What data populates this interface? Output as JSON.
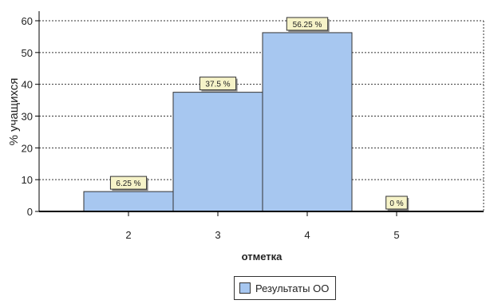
{
  "chart_data": {
    "type": "bar",
    "categories": [
      "2",
      "3",
      "4",
      "5"
    ],
    "series": [
      {
        "name": "Результаты ОО",
        "values": [
          6.25,
          37.5,
          56.25,
          0
        ],
        "color": "#a7c7f0"
      }
    ],
    "data_labels": [
      "6.25 %",
      "37.5 %",
      "56.25 %",
      "0 %"
    ],
    "title": "",
    "xlabel": "отметка",
    "ylabel": "% учащихся",
    "ylim": [
      0,
      60
    ],
    "yticks": [
      0,
      10,
      20,
      30,
      40,
      50,
      60
    ],
    "grid": true,
    "legend_position": "bottom-center"
  }
}
